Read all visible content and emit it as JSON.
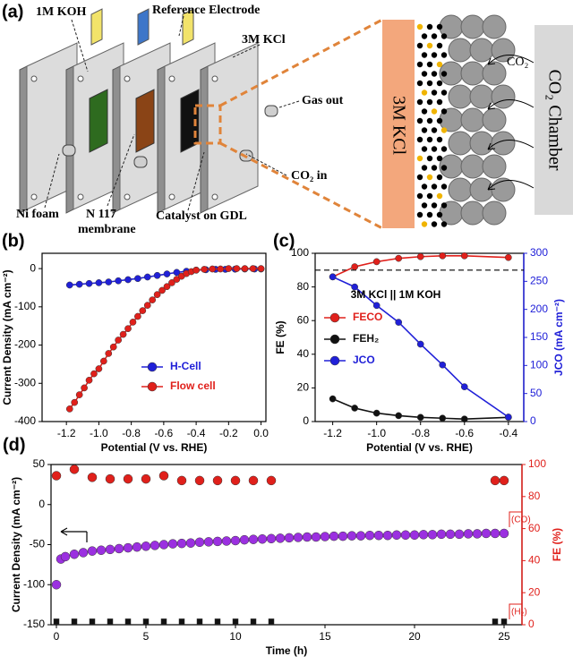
{
  "diagram": {
    "panel_label": "(a)",
    "labels": {
      "koh": "1M KOH",
      "reference": "Reference Electrode",
      "kcl": "3M KCl",
      "gas_out": "Gas out",
      "co2_in": "CO₂ in",
      "ni_foam": "Ni foam",
      "membrane": [
        "N 117",
        "membrane"
      ],
      "catalyst": "Catalyst on GDL",
      "kcl_zoom": "3M KCl",
      "co2": "CO₂",
      "chamber": "CO₂ Chamber"
    }
  },
  "chart_data": [
    {
      "type": "line",
      "panel_label": "(b)",
      "xlabel": "Potential (V vs. RHE)",
      "ylabel": "Current Density (mA cm⁻²)",
      "xlim": [
        -1.35,
        0.03
      ],
      "xticks": [
        -1.2,
        {
          "value": -1,
          "label": "-1.0"
        },
        -0.8,
        -0.6,
        -0.4,
        -0.2,
        {
          "value": 0,
          "label": "0.0"
        }
      ],
      "ylim": [
        -400,
        40
      ],
      "yticks": [
        -400,
        -300,
        -200,
        -100,
        0
      ],
      "legend": "lower right",
      "series": [
        {
          "name": "H-Cell",
          "color": "#2020d8",
          "marker": "circle",
          "x": [
            -1.18,
            -1.12,
            -1.06,
            -1.0,
            -0.94,
            -0.88,
            -0.82,
            -0.76,
            -0.7,
            -0.64,
            -0.58,
            -0.52,
            -0.46,
            -0.4,
            -0.34,
            -0.28,
            -0.22,
            -0.16,
            -0.1,
            -0.04,
            0
          ],
          "values": [
            -43,
            -41,
            -39,
            -37,
            -35,
            -32,
            -29,
            -26,
            -22,
            -18,
            -14,
            -10,
            -7,
            -4,
            -3,
            -2,
            -2,
            -1.5,
            -1,
            -1,
            -1
          ]
        },
        {
          "name": "Flow cell",
          "color": "#e0201b",
          "marker": "circle",
          "x": [
            -1.18,
            -1.15,
            -1.12,
            -1.09,
            -1.06,
            -1.03,
            -1.0,
            -0.97,
            -0.94,
            -0.91,
            -0.88,
            -0.85,
            -0.82,
            -0.79,
            -0.76,
            -0.73,
            -0.7,
            -0.67,
            -0.64,
            -0.61,
            -0.58,
            -0.55,
            -0.52,
            -0.49,
            -0.46,
            -0.43,
            -0.4,
            -0.35,
            -0.3,
            -0.25,
            -0.2,
            -0.15,
            -0.1,
            -0.05,
            0
          ],
          "values": [
            -367,
            -350,
            -330,
            -312,
            -292,
            -275,
            -262,
            -242,
            -222,
            -205,
            -187,
            -172,
            -157,
            -140,
            -125,
            -110,
            -96,
            -82,
            -68,
            -57,
            -47,
            -37,
            -28,
            -20,
            -13,
            -8,
            -4,
            -2,
            -1,
            -1,
            0,
            0,
            0,
            0,
            0
          ]
        }
      ]
    },
    {
      "type": "line",
      "panel_label": "(c)",
      "xlabel": "Potential (V vs. RHE)",
      "ylabel": "FE (%)",
      "y2label": "JCO (mA cm⁻²)",
      "xlim": [
        -1.28,
        -0.33
      ],
      "xticks": [
        -1.2,
        {
          "value": -1,
          "label": "-1.0"
        },
        -0.8,
        -0.6,
        -0.4
      ],
      "ylim": [
        0,
        100
      ],
      "yticks": [
        0,
        20,
        40,
        60,
        80,
        100
      ],
      "y2lim": [
        0,
        300
      ],
      "y2ticks": [
        0,
        50,
        100,
        150,
        200,
        250,
        300
      ],
      "y2color": "#2020d8",
      "hline": 90,
      "legend": "center right",
      "legend_title": "3M KCl || 1M KOH",
      "series": [
        {
          "name": "FECO",
          "color": "#e0201b",
          "marker": "circle",
          "x": [
            -1.2,
            -1.1,
            -1.0,
            -0.9,
            -0.8,
            -0.7,
            -0.6,
            -0.4
          ],
          "values": [
            86,
            92,
            95,
            97,
            98,
            98.5,
            98.5,
            97.5
          ]
        },
        {
          "name": "FEH₂",
          "color": "#111111",
          "marker": "circle",
          "x": [
            -1.2,
            -1.1,
            -1.0,
            -0.9,
            -0.8,
            -0.7,
            -0.6,
            -0.4
          ],
          "values": [
            13.5,
            8,
            5,
            3.5,
            2.5,
            2,
            1.5,
            2.5
          ]
        },
        {
          "name": "JCO",
          "color": "#2020d8",
          "marker": "circle",
          "axis": "y2",
          "x": [
            -1.2,
            -1.1,
            -1.0,
            -0.9,
            -0.8,
            -0.7,
            -0.6,
            -0.4
          ],
          "values": [
            258,
            240,
            207,
            177,
            138,
            101,
            62,
            8
          ]
        }
      ]
    },
    {
      "type": "scatter",
      "panel_label": "(d)",
      "xlabel": "Time (h)",
      "ylabel": "Current Density (mA cm⁻²)",
      "y2label": "FE (%)",
      "xlim": [
        -0.3,
        26
      ],
      "xticks": [
        0,
        5,
        10,
        15,
        20,
        25
      ],
      "ylim": [
        -150,
        50
      ],
      "yticks": [
        -150,
        -100,
        -50,
        0,
        50
      ],
      "y2lim": [
        0,
        100
      ],
      "y2ticks": [
        0,
        20,
        40,
        60,
        80,
        100
      ],
      "y2color": "#e0201b",
      "annotations": [
        "(CO)",
        "(H₂)"
      ],
      "series": [
        {
          "color": "#9b30e0",
          "marker": "circle",
          "x": [
            0,
            0.25,
            0.5,
            1,
            1.5,
            2,
            2.5,
            3,
            3.5,
            4,
            4.5,
            5,
            5.5,
            6,
            6.5,
            7,
            7.5,
            8,
            8.5,
            9,
            9.5,
            10,
            10.5,
            11,
            11.5,
            12,
            12.5,
            13,
            13.5,
            14,
            14.5,
            15,
            15.5,
            16,
            16.5,
            17,
            17.5,
            18,
            18.5,
            19,
            19.5,
            20,
            20.5,
            21,
            21.5,
            22,
            22.5,
            23,
            23.5,
            24,
            24.5,
            25
          ],
          "values": [
            -100,
            -68,
            -65,
            -62,
            -60,
            -58,
            -57,
            -56,
            -55,
            -54,
            -53,
            -52,
            -51,
            -50,
            -49,
            -48.5,
            -48,
            -47,
            -46.5,
            -46,
            -45.5,
            -45,
            -44,
            -43.5,
            -43,
            -42.5,
            -42,
            -41.5,
            -41,
            -40.5,
            -40.5,
            -40,
            -39.5,
            -39.5,
            -39,
            -39,
            -38.5,
            -38.5,
            -38.5,
            -38,
            -38,
            -38,
            -37.5,
            -37.5,
            -37,
            -37,
            -37,
            -36.5,
            -36.5,
            -36,
            -36,
            -36
          ]
        },
        {
          "color": "#e0201b",
          "marker": "circle",
          "axis": "y2",
          "x": [
            0,
            1,
            2,
            3,
            4,
            5,
            6,
            7,
            8,
            9,
            10,
            11,
            12,
            24.5,
            25
          ],
          "values": [
            93,
            97,
            92,
            91,
            91,
            91,
            93,
            90,
            90,
            90,
            90,
            90,
            90,
            90,
            90
          ]
        },
        {
          "color": "#111111",
          "marker": "square",
          "axis": "y2",
          "x": [
            0,
            1,
            2,
            3,
            4,
            5,
            6,
            7,
            8,
            9,
            10,
            11,
            12,
            24.5,
            25
          ],
          "values": [
            2,
            2,
            2,
            2,
            2,
            2,
            2,
            2,
            2,
            2,
            2,
            2,
            2,
            2,
            2
          ]
        }
      ]
    }
  ]
}
